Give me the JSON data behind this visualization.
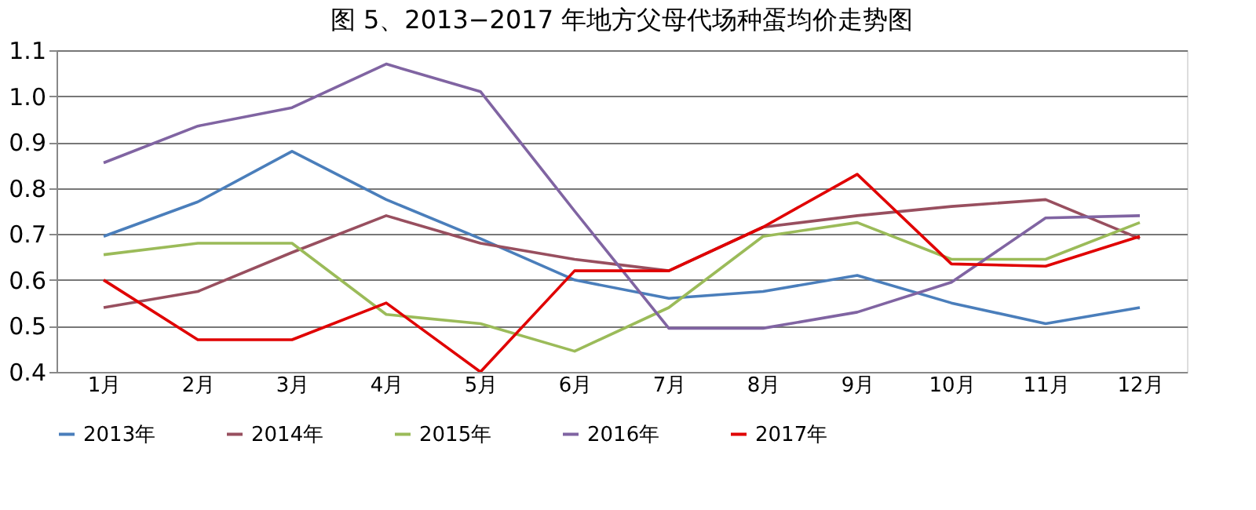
{
  "chart_data": {
    "type": "line",
    "title": "图 5、2013−2017 年地方父母代场种蛋均价走势图",
    "categories": [
      "1月",
      "2月",
      "3月",
      "4月",
      "5月",
      "6月",
      "7月",
      "8月",
      "9月",
      "10月",
      "11月",
      "12月"
    ],
    "series": [
      {
        "name": "2013年",
        "color": "#4a7ebb",
        "values": [
          0.695,
          0.77,
          0.88,
          0.775,
          0.69,
          0.6,
          0.56,
          0.575,
          0.61,
          0.55,
          0.505,
          0.54
        ]
      },
      {
        "name": "2014年",
        "color": "#984f5f",
        "values": [
          0.54,
          0.575,
          0.66,
          0.74,
          0.68,
          0.645,
          0.62,
          0.715,
          0.74,
          0.76,
          0.775,
          0.69
        ]
      },
      {
        "name": "2015年",
        "color": "#9bbb59",
        "values": [
          0.655,
          0.68,
          0.68,
          0.525,
          0.505,
          0.445,
          0.54,
          0.695,
          0.725,
          0.645,
          0.645,
          0.725
        ]
      },
      {
        "name": "2016年",
        "color": "#8064a2",
        "values": [
          0.855,
          0.935,
          0.975,
          1.07,
          1.01,
          0.75,
          0.495,
          0.495,
          0.53,
          0.595,
          0.735,
          0.74
        ]
      },
      {
        "name": "2017年",
        "color": "#e00000",
        "values": [
          0.6,
          0.47,
          0.47,
          0.55,
          0.4,
          0.62,
          0.62,
          0.715,
          0.83,
          0.635,
          0.63,
          0.695
        ]
      }
    ],
    "ylim": [
      0.4,
      1.1
    ],
    "yticks": [
      0.4,
      0.5,
      0.6,
      0.7,
      0.8,
      0.9,
      {
        "value": 1.0,
        "label": "1.0"
      },
      1.1
    ],
    "grid": "y",
    "legend": "bottom",
    "marker": "none",
    "line_style": "solid"
  }
}
